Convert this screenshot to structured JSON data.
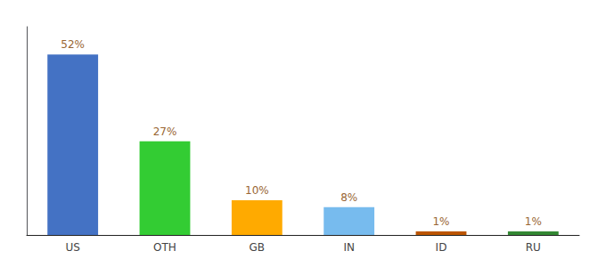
{
  "chart_data": {
    "type": "bar",
    "categories": [
      "US",
      "OTH",
      "GB",
      "IN",
      "ID",
      "RU"
    ],
    "values": [
      52,
      27,
      10,
      8,
      1,
      1
    ],
    "value_labels": [
      "52%",
      "27%",
      "10%",
      "8%",
      "1%",
      "1%"
    ],
    "data_labels": true,
    "colors": [
      "#4472c4",
      "#33cc33",
      "#ffaa00",
      "#77bbee",
      "#bb5500",
      "#338833"
    ],
    "ylim": [
      0,
      60
    ],
    "grid": false,
    "tick_labels": "x"
  }
}
